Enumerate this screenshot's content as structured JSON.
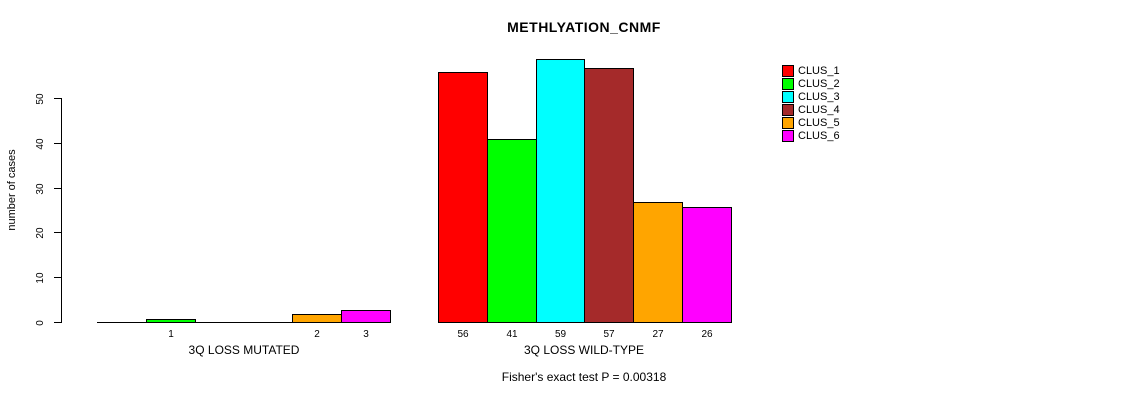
{
  "chart_data": {
    "type": "bar",
    "title": "METHLYATION_CNMF",
    "ylabel": "number of cases",
    "xlabel": "",
    "ylim": [
      0,
      59
    ],
    "yticks": [
      0,
      10,
      20,
      30,
      40,
      50
    ],
    "grid": false,
    "legend_position": "top-right",
    "categories": [
      "3Q LOSS MUTATED",
      "3Q LOSS WILD-TYPE"
    ],
    "series": [
      {
        "name": "CLUS_1",
        "color": "#FF0000",
        "values": [
          0,
          56
        ]
      },
      {
        "name": "CLUS_2",
        "color": "#00FF00",
        "values": [
          1,
          41
        ]
      },
      {
        "name": "CLUS_3",
        "color": "#00FFFF",
        "values": [
          0,
          59
        ]
      },
      {
        "name": "CLUS_4",
        "color": "#A52A2A",
        "values": [
          0,
          57
        ]
      },
      {
        "name": "CLUS_5",
        "color": "#FFA500",
        "values": [
          2,
          27
        ]
      },
      {
        "name": "CLUS_6",
        "color": "#FF00FF",
        "values": [
          3,
          26
        ]
      }
    ],
    "bar_value_labels_rule": "shown under each non-zero bar",
    "annotation": "Fisher's exact test P = 0.00318",
    "axis_color": "#000000",
    "background_color": "#FFFFFF"
  }
}
